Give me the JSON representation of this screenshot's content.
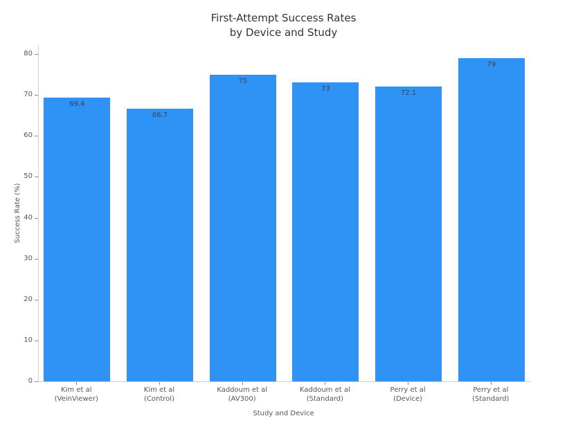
{
  "chart_data": {
    "type": "bar",
    "title": "First-Attempt Success Rates by Device and Study",
    "title_lines": [
      "First-Attempt Success Rates",
      "by Device and Study"
    ],
    "categories": [
      "Kim et al\n(VeinViewer)",
      "Kim et al\n(Control)",
      "Kaddoum et al\n(AV300)",
      "Kaddoum et al\n(Standard)",
      "Perry et al\n(Device)",
      "Perry et al\n(Standard)"
    ],
    "values": [
      69.4,
      66.7,
      75,
      73,
      72.1,
      79
    ],
    "value_labels": [
      "69.4",
      "66.7",
      "75",
      "73",
      "72.1",
      "79"
    ],
    "xlabel": "Study and Device",
    "ylabel": "Success Rate (%)",
    "ylim": [
      0,
      80
    ],
    "yticks": [
      0,
      10,
      20,
      30,
      40,
      50,
      60,
      70,
      80
    ],
    "grid": false,
    "legend": "none",
    "colors": {
      "bar_fill": "#2e93f5",
      "value_label": "#31455a",
      "tick_label": "#555555",
      "axis_line": "#cfcfcf",
      "tick_mark": "#8a8a8a",
      "title_text": "#333333"
    }
  }
}
